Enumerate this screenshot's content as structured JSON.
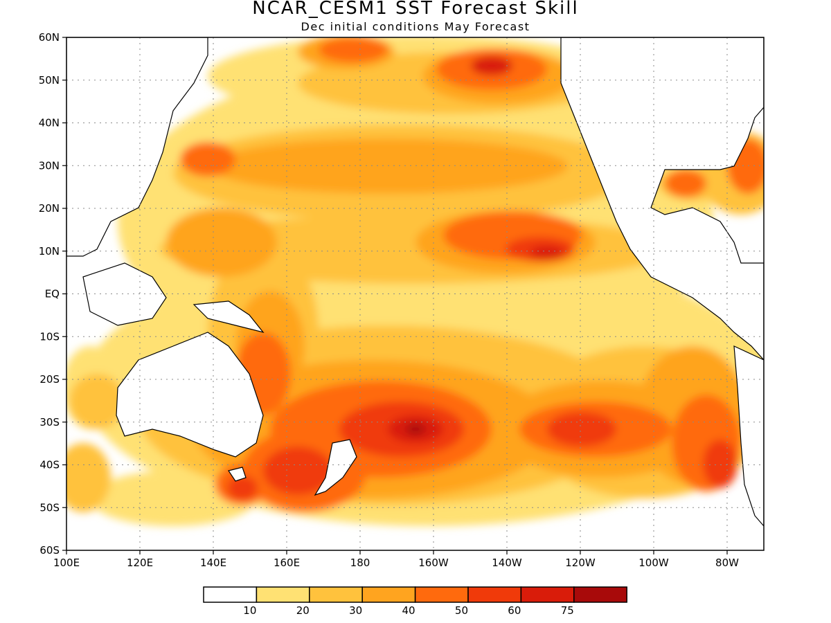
{
  "title": "NCAR_CESM1 SST Forecast Skill",
  "subtitle": "Dec initial conditions  May Forecast",
  "axes": {
    "lat_labels": [
      "60N",
      "50N",
      "40N",
      "30N",
      "20N",
      "10N",
      "EQ",
      "10S",
      "20S",
      "30S",
      "40S",
      "50S",
      "60S"
    ],
    "lon_labels": [
      "100E",
      "120E",
      "140E",
      "160E",
      "180",
      "160W",
      "140W",
      "120W",
      "100W",
      "80W"
    ],
    "lat_range": [
      -60,
      60
    ],
    "lon_range": [
      100,
      290
    ],
    "grid": "dotted"
  },
  "colorbar": {
    "colors": [
      "#ffffff",
      "#ffe173",
      "#ffc23d",
      "#ffa41f",
      "#ff6a0d",
      "#f03a0a",
      "#d91c0a",
      "#a80a0a"
    ],
    "labels": [
      "10",
      "20",
      "30",
      "40",
      "50",
      "60",
      "75"
    ]
  },
  "chart_data": {
    "type": "heatmap",
    "title": "NCAR_CESM1 SST Forecast Skill",
    "subtitle": "Dec initial conditions  May Forecast",
    "x_domain": "longitude 100E–70W",
    "y_domain": "latitude 60S–60N",
    "contour_levels": [
      10,
      20,
      30,
      40,
      50,
      60,
      75
    ]
  }
}
